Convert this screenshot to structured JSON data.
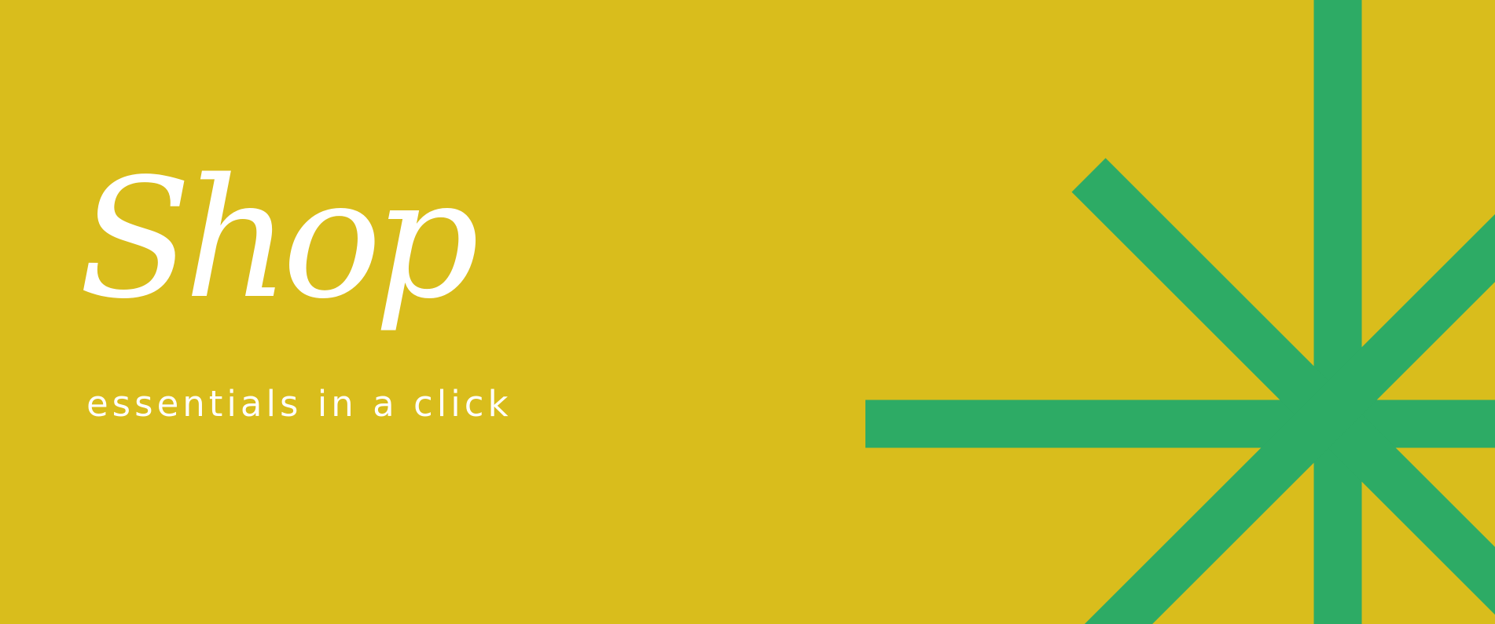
{
  "colors": {
    "background": "#D9BD1C",
    "accent": "#2DAB65",
    "text": "#FFFFFF"
  },
  "hero": {
    "title": "Shop",
    "subtitle": "essentials in a click"
  },
  "decoration": {
    "icon": "starburst-icon"
  }
}
